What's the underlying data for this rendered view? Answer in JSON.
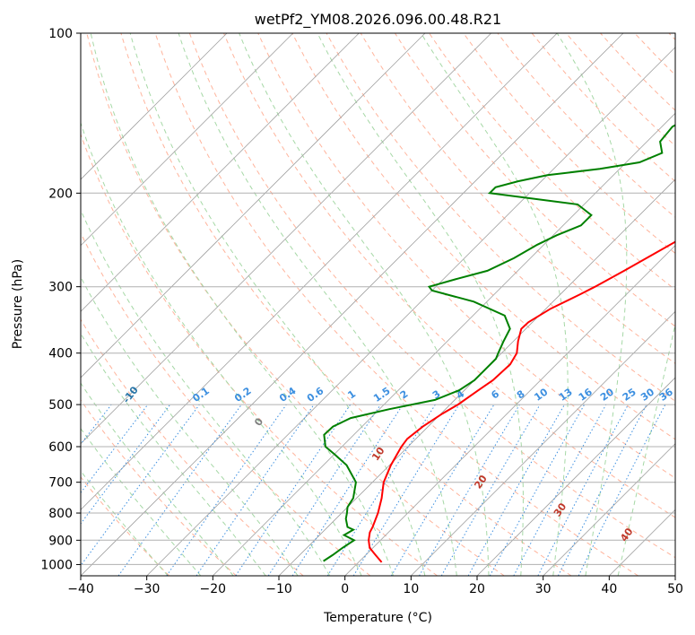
{
  "chart_data": {
    "type": "line",
    "subtype": "skew-t log-p diagram",
    "title": "wetPf2_YM08.2026.096.00.48.R21",
    "xlabel": "Temperature (°C)",
    "ylabel": "Pressure (hPa)",
    "xlim": [
      -40,
      50
    ],
    "ylim": [
      1050,
      100
    ],
    "x_ticks": [
      -40,
      -30,
      -20,
      -10,
      0,
      10,
      20,
      30,
      40,
      50
    ],
    "y_ticks": [
      1000,
      900,
      800,
      700,
      600,
      500,
      400,
      300,
      200,
      100
    ],
    "grid": "horizontal isobars + skewed isotherms",
    "series": [
      {
        "name": "temperature",
        "color": "#ff0000",
        "points": [
          {
            "p": 990,
            "t": 3.5
          },
          {
            "p": 960,
            "t": 1.5
          },
          {
            "p": 930,
            "t": -0.5
          },
          {
            "p": 900,
            "t": -1.8
          },
          {
            "p": 870,
            "t": -2.8
          },
          {
            "p": 850,
            "t": -3.2
          },
          {
            "p": 800,
            "t": -4.5
          },
          {
            "p": 750,
            "t": -6.2
          },
          {
            "p": 700,
            "t": -8.3
          },
          {
            "p": 650,
            "t": -9.8
          },
          {
            "p": 600,
            "t": -11.0
          },
          {
            "p": 580,
            "t": -11.3
          },
          {
            "p": 550,
            "t": -10.8
          },
          {
            "p": 520,
            "t": -9.8
          },
          {
            "p": 500,
            "t": -8.8
          },
          {
            "p": 470,
            "t": -7.9
          },
          {
            "p": 450,
            "t": -7.2
          },
          {
            "p": 420,
            "t": -7.0
          },
          {
            "p": 400,
            "t": -7.7
          },
          {
            "p": 380,
            "t": -9.3
          },
          {
            "p": 360,
            "t": -10.7
          },
          {
            "p": 350,
            "t": -10.6
          },
          {
            "p": 330,
            "t": -9.3
          },
          {
            "p": 310,
            "t": -7.0
          },
          {
            "p": 300,
            "t": -5.9
          },
          {
            "p": 280,
            "t": -3.9
          },
          {
            "p": 260,
            "t": -1.9
          },
          {
            "p": 240,
            "t": 0.2
          },
          {
            "p": 230,
            "t": 1.5
          },
          {
            "p": 220,
            "t": 3.4
          },
          {
            "p": 210,
            "t": 5.9
          },
          {
            "p": 200,
            "t": 8.0
          },
          {
            "p": 185,
            "t": 9.2
          },
          {
            "p": 170,
            "t": 11.5
          },
          {
            "p": 160,
            "t": 13.6
          },
          {
            "p": 150,
            "t": 16.0
          },
          {
            "p": 140,
            "t": 17.6
          },
          {
            "p": 130,
            "t": 20.4
          },
          {
            "p": 120,
            "t": 22.2
          },
          {
            "p": 110,
            "t": 25.5
          },
          {
            "p": 100,
            "t": 28.2
          }
        ]
      },
      {
        "name": "dewpoint",
        "color": "#008000",
        "points": [
          {
            "p": 985,
            "t": -5.5
          },
          {
            "p": 960,
            "t": -5.0
          },
          {
            "p": 930,
            "t": -4.6
          },
          {
            "p": 900,
            "t": -4.0
          },
          {
            "p": 880,
            "t": -6.3
          },
          {
            "p": 860,
            "t": -5.7
          },
          {
            "p": 850,
            "t": -7.0
          },
          {
            "p": 820,
            "t": -8.5
          },
          {
            "p": 800,
            "t": -9.2
          },
          {
            "p": 780,
            "t": -10.0
          },
          {
            "p": 750,
            "t": -10.5
          },
          {
            "p": 700,
            "t": -12.5
          },
          {
            "p": 650,
            "t": -16.5
          },
          {
            "p": 620,
            "t": -20.0
          },
          {
            "p": 600,
            "t": -22.5
          },
          {
            "p": 570,
            "t": -24.5
          },
          {
            "p": 550,
            "t": -24.4
          },
          {
            "p": 530,
            "t": -23.0
          },
          {
            "p": 510,
            "t": -18.5
          },
          {
            "p": 490,
            "t": -13.0
          },
          {
            "p": 470,
            "t": -10.8
          },
          {
            "p": 450,
            "t": -10.0
          },
          {
            "p": 430,
            "t": -10.0
          },
          {
            "p": 410,
            "t": -10.0
          },
          {
            "p": 400,
            "t": -10.5
          },
          {
            "p": 380,
            "t": -11.5
          },
          {
            "p": 360,
            "t": -12.4
          },
          {
            "p": 340,
            "t": -15.2
          },
          {
            "p": 320,
            "t": -22.0
          },
          {
            "p": 305,
            "t": -30.0
          },
          {
            "p": 300,
            "t": -31.0
          },
          {
            "p": 290,
            "t": -28.0
          },
          {
            "p": 280,
            "t": -24.6
          },
          {
            "p": 265,
            "t": -22.5
          },
          {
            "p": 250,
            "t": -21.0
          },
          {
            "p": 240,
            "t": -19.5
          },
          {
            "p": 230,
            "t": -17.3
          },
          {
            "p": 220,
            "t": -17.3
          },
          {
            "p": 210,
            "t": -21.0
          },
          {
            "p": 200,
            "t": -36.0
          },
          {
            "p": 195,
            "t": -36.0
          },
          {
            "p": 190,
            "t": -33.5
          },
          {
            "p": 185,
            "t": -30.0
          },
          {
            "p": 180,
            "t": -23.0
          },
          {
            "p": 175,
            "t": -18.0
          },
          {
            "p": 168,
            "t": -16.0
          },
          {
            "p": 160,
            "t": -18.0
          },
          {
            "p": 150,
            "t": -18.4
          },
          {
            "p": 140,
            "t": -16.5
          },
          {
            "p": 130,
            "t": -16.5
          },
          {
            "p": 120,
            "t": -14.0
          },
          {
            "p": 110,
            "t": -10.5
          },
          {
            "p": 100,
            "t": -7.0
          }
        ]
      }
    ],
    "dry_adiabat_labels": [
      "-100",
      "-90",
      "-80",
      "-70",
      "-60",
      "-50",
      "-40",
      "-30",
      "-20",
      "-10"
    ],
    "mixing_ratio_labels": [
      "0.1",
      "0.2",
      "0.4",
      "0.6",
      "1",
      "1.5",
      "2",
      "3",
      "4",
      "6",
      "8",
      "10",
      "13",
      "16",
      "20",
      "25",
      "30",
      "36"
    ],
    "moist_adiabat_labels": [
      "0",
      "10",
      "20",
      "30",
      "40"
    ],
    "colors": {
      "temperature": "#ff0000",
      "dewpoint": "#008000",
      "isobar": "#b0b0b0",
      "isotherm": "#a0a0a0",
      "dry_adiabat": "#ffb49c",
      "moist_adiabat": "#a6d8a6",
      "mixing_ratio": "#3c8fe0",
      "dry_label": "#2874a6",
      "moist_label": "#c0392b",
      "zero_label": "#808080"
    }
  }
}
